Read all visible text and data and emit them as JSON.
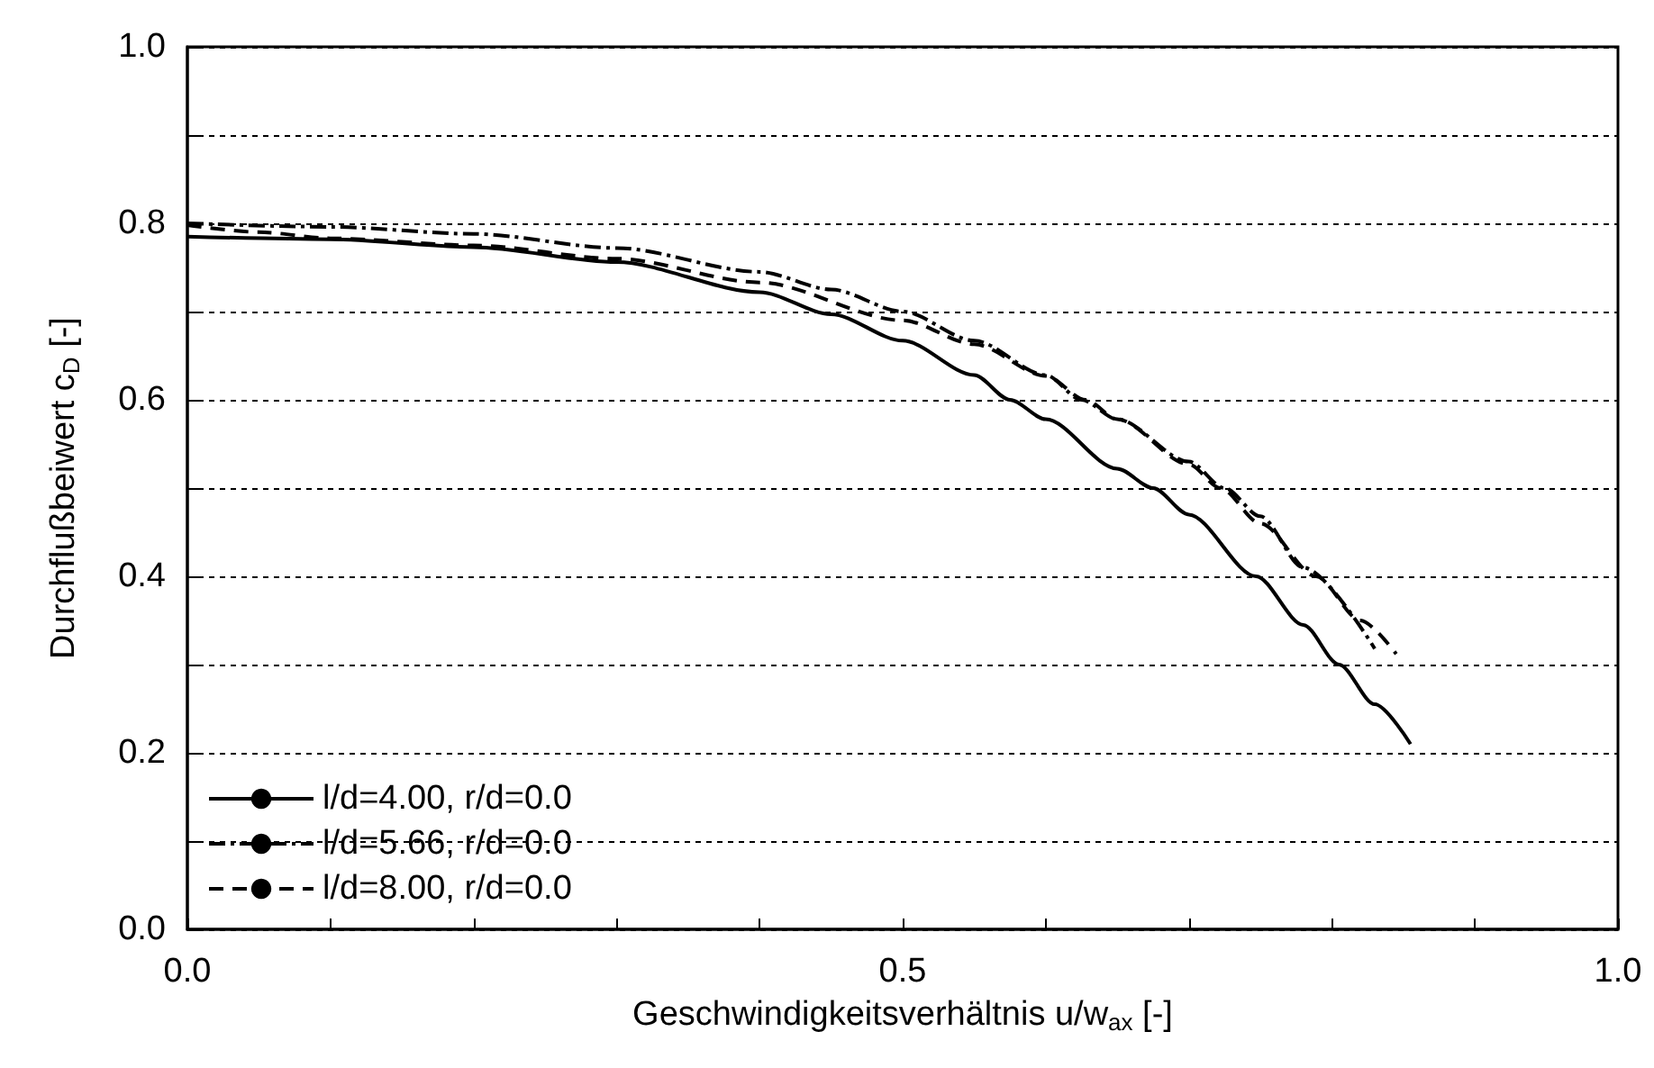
{
  "chart_data": {
    "type": "line",
    "xlabel": "Geschwindigkeitsverhältnis u/w$_{ax}$ [-]",
    "ylabel": "Durchflußbeiwert c$_{D}$ [-]",
    "xlim": [
      0,
      1
    ],
    "ylim": [
      0,
      1
    ],
    "xticks": [
      {
        "value": 0,
        "label": "0.0"
      },
      {
        "value": 0.1,
        "label": null
      },
      {
        "value": 0.2,
        "label": null
      },
      {
        "value": 0.3,
        "label": null
      },
      {
        "value": 0.4,
        "label": null
      },
      0.5,
      {
        "value": 0.6,
        "label": null
      },
      {
        "value": 0.7,
        "label": null
      },
      {
        "value": 0.8,
        "label": null
      },
      {
        "value": 0.9,
        "label": null
      },
      {
        "value": 1,
        "label": "1.0"
      }
    ],
    "yticks": [
      {
        "value": 0,
        "label": "0.0"
      },
      {
        "value": 0.1,
        "label": null
      },
      0.2,
      {
        "value": 0.3,
        "label": null
      },
      0.4,
      {
        "value": 0.5,
        "label": null
      },
      0.6,
      {
        "value": 0.7,
        "label": null
      },
      0.8,
      {
        "value": 0.9,
        "label": null
      },
      {
        "value": 1,
        "label": "1.0"
      }
    ],
    "grid": "y",
    "legend": "bottom left",
    "marker": "none",
    "series": [
      {
        "name": "l/d=4.00, r/d=0.0",
        "color": "#000000",
        "line_style": "solid",
        "x": [
          0,
          0.1,
          0.2,
          0.3,
          0.4,
          0.45,
          0.5,
          0.55,
          0.575,
          0.6,
          0.65,
          0.675,
          0.7,
          0.747,
          0.78,
          0.805,
          0.83,
          0.855
        ],
        "values": [
          0.785,
          0.782,
          0.773,
          0.756,
          0.722,
          0.697,
          0.667,
          0.628,
          0.6,
          0.578,
          0.522,
          0.5,
          0.47,
          0.4,
          0.345,
          0.3,
          0.255,
          0.21
        ]
      },
      {
        "name": "l/d=5.66, r/d=0.0",
        "color": "#000000",
        "line_style": "dashdot",
        "x": [
          0,
          0.1,
          0.2,
          0.3,
          0.4,
          0.45,
          0.5,
          0.55,
          0.6,
          0.625,
          0.65,
          0.7,
          0.725,
          0.75,
          0.78,
          0.83
        ],
        "values": [
          0.8,
          0.796,
          0.788,
          0.772,
          0.745,
          0.725,
          0.7,
          0.667,
          0.628,
          0.6,
          0.578,
          0.53,
          0.5,
          0.468,
          0.41,
          0.318
        ]
      },
      {
        "name": "l/d=8.00, r/d=0.0",
        "color": "#000000",
        "line_style": "dashed",
        "x": [
          0,
          0.05,
          0.1,
          0.2,
          0.3,
          0.4,
          0.5,
          0.55,
          0.6,
          0.628,
          0.65,
          0.7,
          0.722,
          0.75,
          0.789,
          0.82,
          0.845
        ],
        "values": [
          0.798,
          0.79,
          0.783,
          0.775,
          0.76,
          0.733,
          0.69,
          0.663,
          0.627,
          0.6,
          0.578,
          0.527,
          0.5,
          0.46,
          0.4,
          0.35,
          0.312
        ]
      }
    ]
  }
}
